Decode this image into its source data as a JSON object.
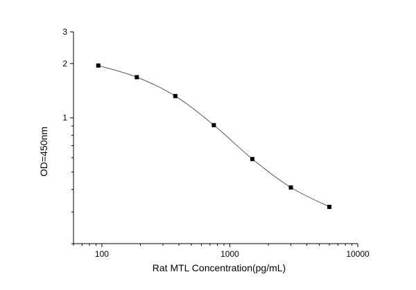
{
  "chart_data": {
    "type": "scatter",
    "title": "",
    "xlabel": "Rat MTL Concentration(pg/mL)",
    "ylabel": "OD=450nm",
    "xscale": "log",
    "yscale": "log",
    "xlim": [
      60,
      10000
    ],
    "ylim": [
      0.2,
      3
    ],
    "xticks": [
      100,
      1000,
      10000
    ],
    "xtick_labels": [
      "100",
      "1000",
      "10000"
    ],
    "yticks": [
      1,
      2,
      3
    ],
    "ytick_labels": [
      "1",
      "2",
      "3"
    ],
    "grid": false,
    "legend": "none",
    "series": [
      {
        "x": [
          93.75,
          187.5,
          375,
          750,
          1500,
          3000,
          6000
        ],
        "y": [
          1.95,
          1.68,
          1.32,
          0.91,
          0.59,
          0.41,
          0.32
        ],
        "marker": "square",
        "fitted_curve": true
      }
    ],
    "colors": {
      "marker": "#000000",
      "curve": "#555555",
      "axis": "#000000"
    }
  }
}
